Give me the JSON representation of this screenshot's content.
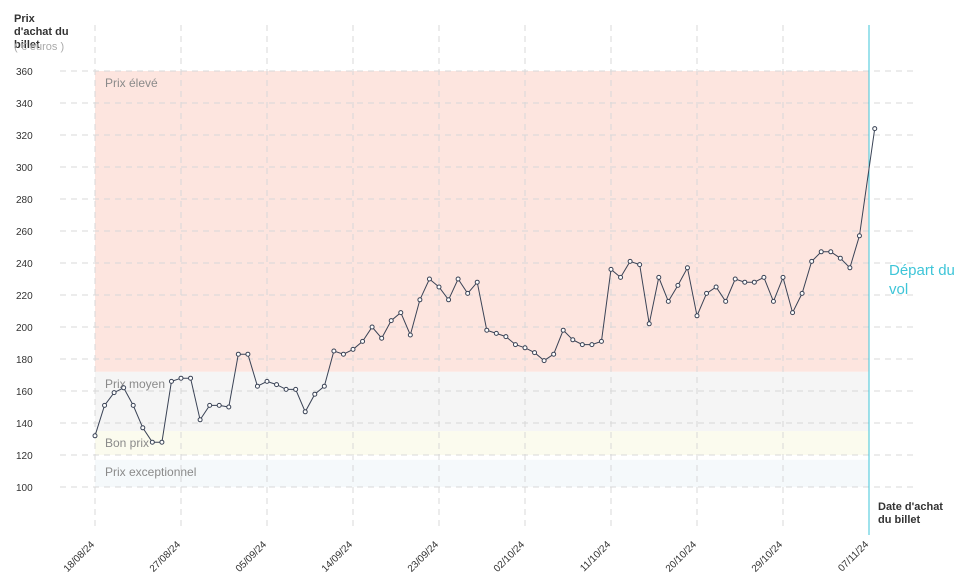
{
  "chart_data": {
    "type": "line",
    "y_title": "Prix d'achat du billet",
    "y_unit": "( € euros )",
    "x_title": "Date d'achat du billet",
    "x": [
      0,
      1,
      2,
      3,
      4,
      5,
      6,
      7,
      8,
      9,
      10,
      11,
      12,
      13,
      14,
      15,
      16,
      17,
      18,
      19,
      20,
      21,
      22,
      23,
      24,
      25,
      26,
      27,
      28,
      29,
      30,
      31,
      32,
      33,
      34,
      35,
      36,
      37,
      38,
      39,
      40,
      41,
      42,
      43,
      44,
      45,
      46,
      47,
      48,
      49,
      50,
      51,
      52,
      53,
      54,
      55,
      56,
      57,
      58,
      59,
      60,
      61,
      62,
      63,
      64,
      65,
      66,
      67,
      68,
      69,
      70,
      71,
      72,
      73,
      74,
      75,
      76,
      77,
      78,
      79,
      80,
      81.6
    ],
    "series": [
      {
        "color": "#3a4356",
        "values": [
          132,
          151,
          159,
          162,
          151,
          137,
          128,
          128,
          166,
          168,
          168,
          142,
          151,
          151,
          150,
          183,
          183,
          163,
          166,
          164,
          161,
          161,
          147,
          158,
          163,
          185,
          183,
          186,
          191,
          200,
          193,
          204,
          209,
          195,
          217,
          230,
          225,
          217,
          230,
          221,
          228,
          198,
          196,
          194,
          189,
          187,
          184,
          179,
          183,
          198,
          192,
          189,
          189,
          191,
          236,
          231,
          241,
          239,
          202,
          231,
          216,
          226,
          237,
          207,
          221,
          225,
          216,
          230,
          228,
          228,
          231,
          216,
          231,
          209,
          221,
          241,
          247,
          247,
          243,
          237,
          257,
          324
        ]
      }
    ],
    "xlim": [
      0,
      81
    ],
    "xticks": [
      {
        "value": 0,
        "label": "18/08/24"
      },
      {
        "value": 9,
        "label": "27/08/24"
      },
      {
        "value": 18,
        "label": "05/09/24"
      },
      {
        "value": 27,
        "label": "14/09/24"
      },
      {
        "value": 36,
        "label": "23/09/24"
      },
      {
        "value": 45,
        "label": "02/10/24"
      },
      {
        "value": 54,
        "label": "11/10/24"
      },
      {
        "value": 63,
        "label": "20/10/24"
      },
      {
        "value": 72,
        "label": "29/10/24"
      },
      {
        "value": 81,
        "label": "07/11/24"
      }
    ],
    "ylim": [
      100,
      360
    ],
    "yticks": [
      100,
      120,
      140,
      160,
      180,
      200,
      220,
      240,
      260,
      280,
      300,
      320,
      340,
      360
    ],
    "grid": true,
    "bands": [
      {
        "label": "Prix élevé",
        "from": 172,
        "to": 360,
        "color": "#fde5df"
      },
      {
        "label": "Prix moyen",
        "from": 135,
        "to": 172,
        "color": "#f5f5f5"
      },
      {
        "label": "Bon prix",
        "from": 120,
        "to": 135,
        "color": "#fbfbee"
      },
      {
        "label": "Prix exceptionnel",
        "from": 100,
        "to": 117,
        "color": "#f5f9fb"
      }
    ],
    "departure": {
      "label": "Départ du vol",
      "x": 81,
      "color": "#3ec5d8"
    }
  }
}
